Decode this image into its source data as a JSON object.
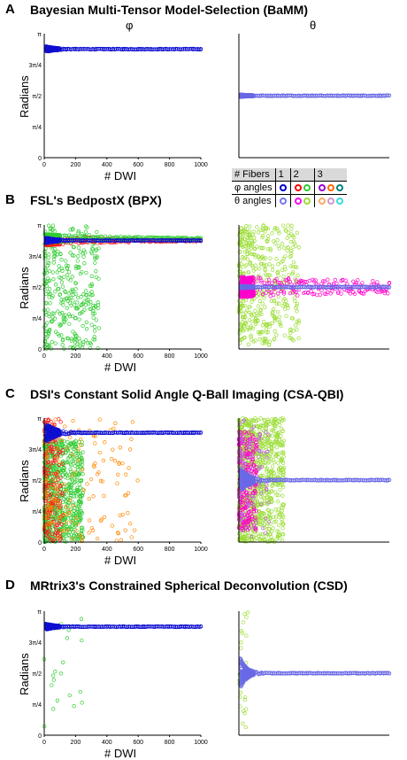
{
  "col_phi": "φ",
  "col_theta": "θ",
  "ylabel": "Radians",
  "xlabel": "# DWI",
  "panels": [
    {
      "letter": "A",
      "title": "Bayesian Multi-Tensor Model-Selection (BaMM)"
    },
    {
      "letter": "B",
      "title": "FSL's BedpostX (BPX)"
    },
    {
      "letter": "C",
      "title": "DSI's Constant Solid Angle Q-Ball Imaging (CSA-QBI)"
    },
    {
      "letter": "D",
      "title": "MRtrix3's Constrained Spherical Deconvolution (CSD)"
    }
  ],
  "legend": {
    "header": [
      "# Fibers",
      "1",
      "2",
      "3"
    ],
    "phi_label": "φ angles",
    "theta_label": "θ angles",
    "phi_colors": [
      [
        "#0000cc"
      ],
      [
        "#ff0000",
        "#33cc33"
      ],
      [
        "#9900cc",
        "#ff6600",
        "#008080"
      ]
    ],
    "theta_colors": [
      [
        "#7777ee"
      ],
      [
        "#ff00ff",
        "#99dd33"
      ],
      [
        "#ffaa66",
        "#cc99cc",
        "#33dddd"
      ]
    ]
  },
  "colors": {
    "phi1": "#1010d0",
    "theta1": "#6a6ae6",
    "phi2a": "#ff1a1a",
    "phi2b": "#33cc33",
    "theta2a": "#ff00cc",
    "theta2b": "#99dd33",
    "phi3": "#ff8800",
    "theta3": "#bb66dd"
  },
  "chart_data": [
    {
      "panel": "A",
      "type": "scatter",
      "xlim": [
        0,
        1000
      ],
      "yticks": [
        "0",
        "π/4",
        "π/2",
        "3π/4",
        "π"
      ],
      "xticks": [
        "0",
        "200",
        "400",
        "600",
        "800",
        "1000"
      ],
      "phi_series": {
        "name": "φ angles (1 fiber)",
        "converges_to": 2.75
      },
      "theta_series": {
        "name": "θ angles (1 fiber)",
        "converges_to": 1.57
      }
    },
    {
      "panel": "B",
      "type": "scatter",
      "xlim": [
        0,
        1000
      ],
      "phi_series": {
        "converges_to": 2.75
      },
      "theta_series": {
        "converges_to": 1.57
      }
    },
    {
      "panel": "C",
      "type": "scatter",
      "xlim": [
        0,
        1000
      ],
      "phi_series": {
        "converges_to": 2.77
      },
      "theta_series": {
        "converges_to": 1.57
      }
    },
    {
      "panel": "D",
      "type": "scatter",
      "xlim": [
        0,
        1000
      ],
      "phi_series": {
        "converges_to": 2.75
      },
      "theta_series": {
        "converges_to": 1.57
      }
    }
  ]
}
